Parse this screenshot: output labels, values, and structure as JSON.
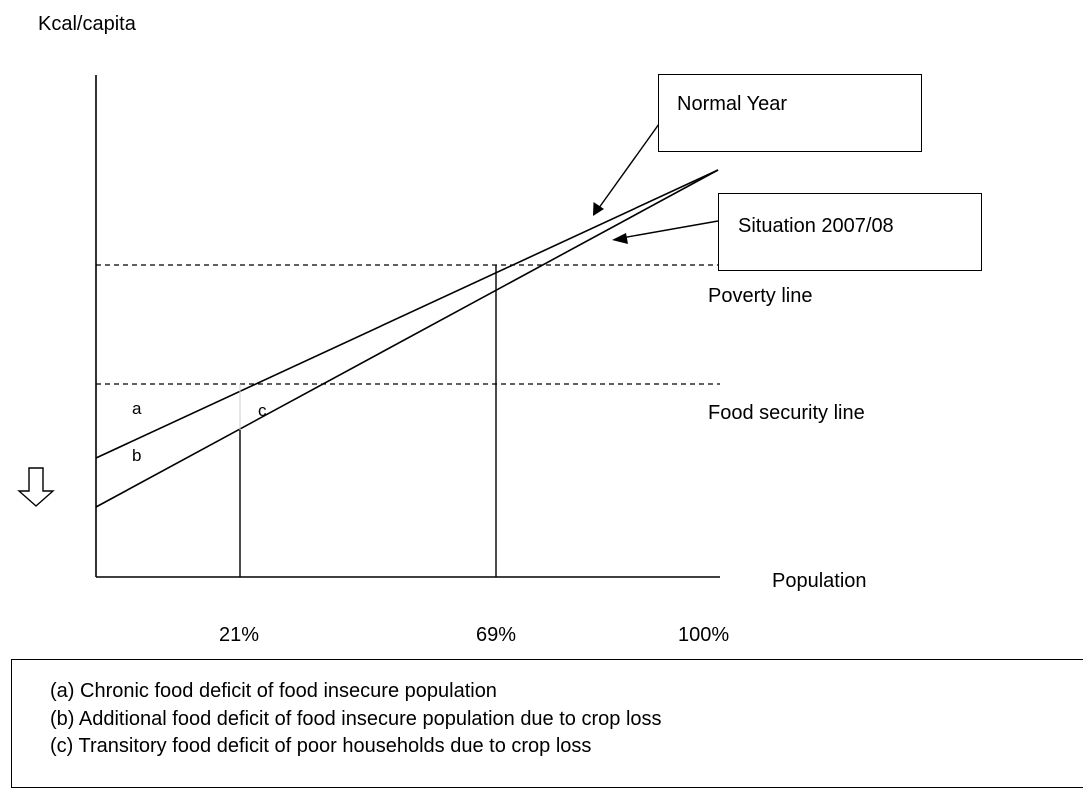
{
  "y_axis_label": "Kcal/capita",
  "x_axis_label": "Population",
  "x_ticks": [
    "21%",
    "69%",
    "100%"
  ],
  "lines": {
    "normal_year": "Normal Year",
    "situation": "Situation 2007/08"
  },
  "reference_lines": {
    "poverty": "Poverty line",
    "food_security": "Food security line"
  },
  "region_labels": {
    "a": "a",
    "b": "b",
    "c": "c"
  },
  "legend": [
    "(a)  Chronic food deficit of food insecure population",
    "(b)  Additional food deficit of food insecure population due to crop loss",
    "(c)  Transitory food deficit of poor households due to crop loss"
  ],
  "colors": {
    "line": "#000000",
    "dashed": "#000000",
    "background": "#ffffff"
  }
}
